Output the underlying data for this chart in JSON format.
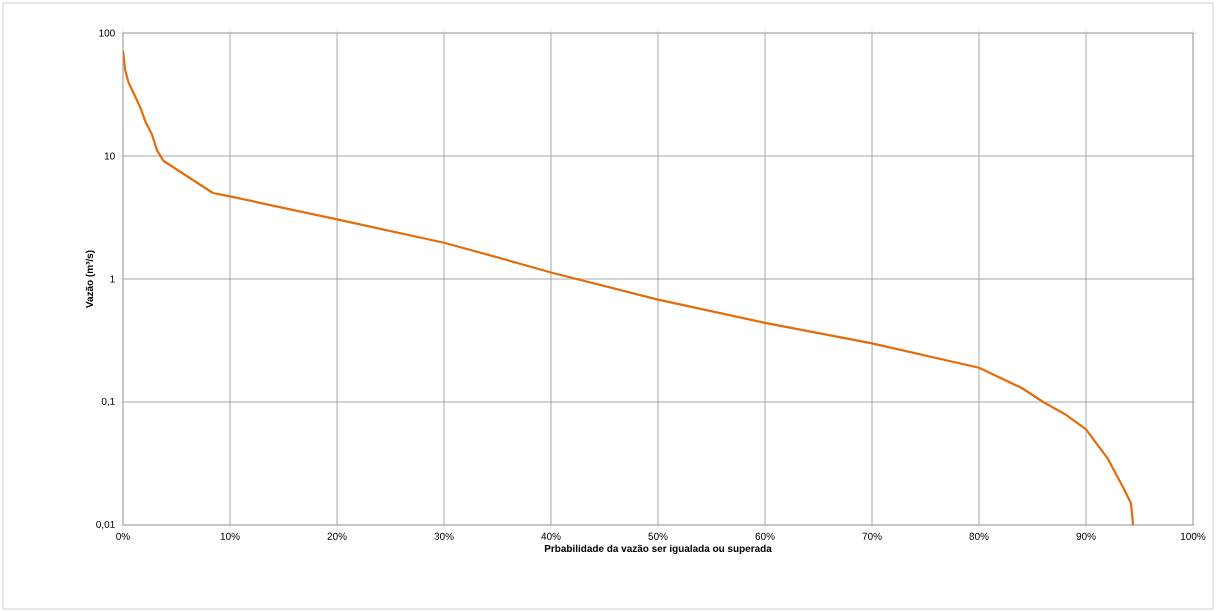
{
  "chart_data": {
    "type": "line",
    "xlabel": "Prbabilidade da vazão ser igualada ou superada",
    "ylabel": "Vazão (m³/s)",
    "log": "y",
    "grid": true,
    "marker": "none",
    "line_style": "solid",
    "xlim": [
      0,
      100
    ],
    "ylim": [
      0.01,
      100
    ],
    "xticks": [
      {
        "value": 0,
        "label": "0%"
      },
      {
        "value": 10,
        "label": "10%"
      },
      {
        "value": 20,
        "label": "20%"
      },
      {
        "value": 30,
        "label": "30%"
      },
      {
        "value": 40,
        "label": "40%"
      },
      {
        "value": 50,
        "label": "50%"
      },
      {
        "value": 60,
        "label": "60%"
      },
      {
        "value": 70,
        "label": "70%"
      },
      {
        "value": 80,
        "label": "80%"
      },
      {
        "value": 90,
        "label": "90%"
      },
      {
        "value": 100,
        "label": "100%"
      }
    ],
    "yticks": [
      {
        "value": 0.01,
        "label": "0,01"
      },
      {
        "value": 0.1,
        "label": "0,1"
      },
      {
        "value": 1,
        "label": "1"
      },
      {
        "value": 10,
        "label": "10"
      },
      {
        "value": 100,
        "label": "100"
      }
    ],
    "series": [
      {
        "color": "#e46c0a",
        "x": [
          0,
          0.2,
          0.5,
          1.6,
          2.1,
          2.7,
          3.2,
          3.8,
          8.4,
          10,
          20,
          30,
          35,
          40,
          50,
          60,
          70,
          80,
          84,
          86,
          88,
          90,
          92,
          93.5,
          94.2,
          94.4
        ],
        "values": [
          72,
          50,
          40,
          25,
          19,
          15,
          11,
          9.1,
          5,
          4.7,
          3.05,
          1.97,
          1.5,
          1.13,
          0.68,
          0.44,
          0.3,
          0.19,
          0.13,
          0.1,
          0.08,
          0.06,
          0.035,
          0.02,
          0.015,
          0.01
        ]
      }
    ]
  }
}
